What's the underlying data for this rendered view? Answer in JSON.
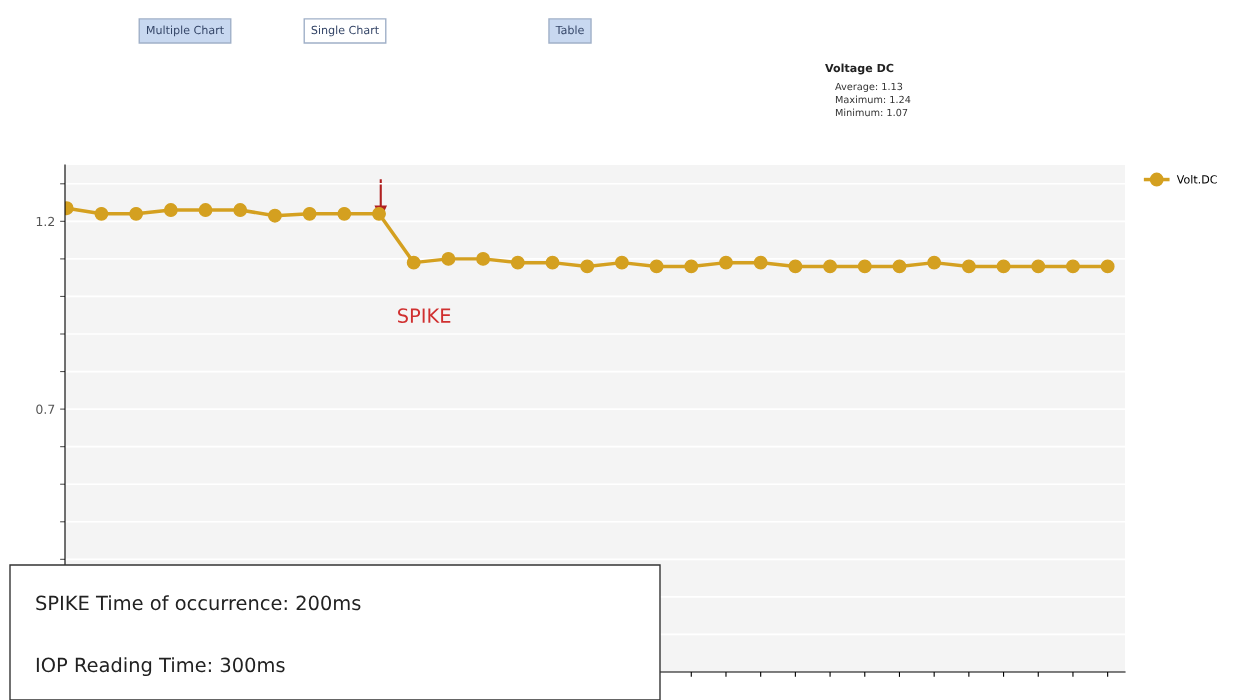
{
  "chart_data": {
    "type": "line",
    "categories": [
      null,
      null,
      null,
      null,
      null,
      null,
      null,
      null,
      null,
      null,
      null,
      null,
      null,
      null,
      null,
      null,
      null,
      null,
      null,
      null,
      null,
      null,
      null,
      null,
      null,
      null,
      null,
      null,
      null,
      null,
      null
    ],
    "series": [
      {
        "name": "Volt.DC",
        "color": "#d4a020",
        "values": [
          1.235,
          1.22,
          1.22,
          1.23,
          1.23,
          1.23,
          1.215,
          1.22,
          1.22,
          1.22,
          1.09,
          1.1,
          1.1,
          1.09,
          1.09,
          1.08,
          1.09,
          1.08,
          1.08,
          1.09,
          1.09,
          1.08,
          1.08,
          1.08,
          1.08,
          1.09,
          1.08,
          1.08,
          1.08,
          1.08,
          1.08
        ]
      }
    ],
    "ylim": [
      0,
      1.35
    ],
    "yticks": [
      {
        "value": 0.1,
        "label": null
      },
      {
        "value": 0.2,
        "label": null
      },
      {
        "value": 0.3,
        "label": null
      },
      {
        "value": 0.4,
        "label": null
      },
      {
        "value": 0.5,
        "label": null
      },
      {
        "value": 0.6,
        "label": null
      },
      {
        "value": 0.7,
        "label": "0.7"
      },
      {
        "value": 0.8,
        "label": null
      },
      {
        "value": 0.9,
        "label": null
      },
      {
        "value": 1.0,
        "label": null
      },
      {
        "value": 1.1,
        "label": null
      },
      {
        "value": 1.2,
        "label": "1.2"
      },
      {
        "value": 1.3,
        "label": null
      }
    ],
    "tick_labels": "y",
    "grid": "y",
    "legend": "top right",
    "marker": "circle",
    "line_style": "solid",
    "annotations": [
      "SPIKE",
      "SPIKE Time of occurrence: 200ms",
      "IOP Reading Time: 300ms",
      "Multiple Chart",
      "Single Chart",
      "Table",
      "Voltage DC",
      "Average: 1.13",
      "Maximum: 1.24",
      "Minimum: 1.07"
    ]
  }
}
